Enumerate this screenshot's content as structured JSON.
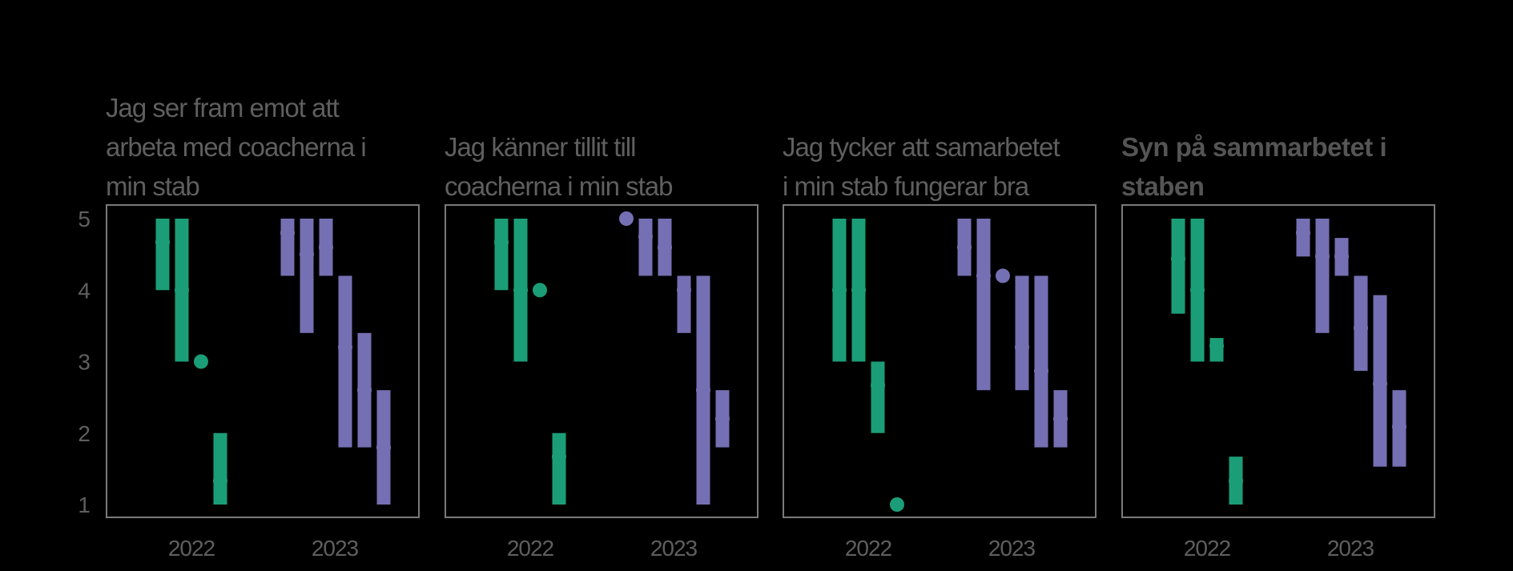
{
  "colors": {
    "2022": "#1b9e77",
    "2023": "#7570b3",
    "frame": "#7a7a7a",
    "text": "#5f5f5f",
    "background": "#000000"
  },
  "chart_data": [
    {
      "type": "interval",
      "title_lines": [
        "Jag ser fram emot att",
        "arbeta med coacherna i",
        "min stab"
      ],
      "title_bold": false,
      "ylim": [
        0.8,
        5.2
      ],
      "yticks": [
        1,
        2,
        3,
        4,
        5
      ],
      "x_groups": [
        "2022",
        "2023"
      ],
      "series": [
        {
          "group": "2022",
          "items": [
            {
              "mean": 4.67,
              "low": 4.0,
              "high": 5.0
            },
            {
              "mean": 4.0,
              "low": 3.0,
              "high": 5.0
            },
            {
              "mean": 3.0,
              "low": 3.0,
              "high": 3.0
            },
            {
              "mean": 1.33,
              "low": 1.0,
              "high": 2.0
            }
          ]
        },
        {
          "group": "2023",
          "items": [
            {
              "mean": 4.8,
              "low": 4.2,
              "high": 5.0
            },
            {
              "mean": 4.5,
              "low": 3.4,
              "high": 5.0
            },
            {
              "mean": 4.6,
              "low": 4.2,
              "high": 5.0
            },
            {
              "mean": 3.2,
              "low": 1.8,
              "high": 4.2
            },
            {
              "mean": 2.6,
              "low": 1.8,
              "high": 3.4
            },
            {
              "mean": 1.8,
              "low": 1.0,
              "high": 2.6
            }
          ]
        }
      ]
    },
    {
      "type": "interval",
      "title_lines": [
        "Jag känner tillit till",
        "coacherna i min stab"
      ],
      "title_bold": false,
      "ylim": [
        0.8,
        5.2
      ],
      "yticks": [
        1,
        2,
        3,
        4,
        5
      ],
      "x_groups": [
        "2022",
        "2023"
      ],
      "series": [
        {
          "group": "2022",
          "items": [
            {
              "mean": 4.67,
              "low": 4.0,
              "high": 5.0
            },
            {
              "mean": 4.0,
              "low": 3.0,
              "high": 5.0
            },
            {
              "mean": 4.0,
              "low": 4.0,
              "high": 4.0
            },
            {
              "mean": 1.67,
              "low": 1.0,
              "high": 2.0
            }
          ]
        },
        {
          "group": "2023",
          "items": [
            {
              "mean": 5.0,
              "low": 5.0,
              "high": 5.0
            },
            {
              "mean": 4.75,
              "low": 4.2,
              "high": 5.0
            },
            {
              "mean": 4.6,
              "low": 4.2,
              "high": 5.0
            },
            {
              "mean": 4.0,
              "low": 3.4,
              "high": 4.2
            },
            {
              "mean": 2.6,
              "low": 1.0,
              "high": 4.2
            },
            {
              "mean": 2.2,
              "low": 1.8,
              "high": 2.6
            }
          ]
        }
      ]
    },
    {
      "type": "interval",
      "title_lines": [
        "Jag tycker att samarbetet",
        "i min stab fungerar bra"
      ],
      "title_bold": false,
      "ylim": [
        0.8,
        5.2
      ],
      "yticks": [
        1,
        2,
        3,
        4,
        5
      ],
      "x_groups": [
        "2022",
        "2023"
      ],
      "series": [
        {
          "group": "2022",
          "items": [
            {
              "mean": 4.0,
              "low": 3.0,
              "high": 5.0
            },
            {
              "mean": 4.0,
              "low": 3.0,
              "high": 5.0
            },
            {
              "mean": 2.67,
              "low": 2.0,
              "high": 3.0
            },
            {
              "mean": 1.0,
              "low": 1.0,
              "high": 1.0
            }
          ]
        },
        {
          "group": "2023",
          "items": [
            {
              "mean": 4.6,
              "low": 4.2,
              "high": 5.0
            },
            {
              "mean": 4.2,
              "low": 2.6,
              "high": 5.0
            },
            {
              "mean": 4.2,
              "low": 4.2,
              "high": 4.2
            },
            {
              "mean": 3.2,
              "low": 2.6,
              "high": 4.2
            },
            {
              "mean": 2.87,
              "low": 1.8,
              "high": 4.2
            },
            {
              "mean": 2.2,
              "low": 1.8,
              "high": 2.6
            }
          ]
        }
      ]
    },
    {
      "type": "interval",
      "title_lines": [
        "Syn på sammarbetet i",
        "staben"
      ],
      "title_bold": true,
      "ylim": [
        0.8,
        5.2
      ],
      "yticks": [
        1,
        2,
        3,
        4,
        5
      ],
      "x_groups": [
        "2022",
        "2023"
      ],
      "series": [
        {
          "group": "2022",
          "items": [
            {
              "mean": 4.44,
              "low": 3.67,
              "high": 5.0
            },
            {
              "mean": 4.0,
              "low": 3.0,
              "high": 5.0
            },
            {
              "mean": 3.22,
              "low": 3.0,
              "high": 3.33
            },
            {
              "mean": 1.33,
              "low": 1.0,
              "high": 1.67
            }
          ]
        },
        {
          "group": "2023",
          "items": [
            {
              "mean": 4.8,
              "low": 4.47,
              "high": 5.0
            },
            {
              "mean": 4.47,
              "low": 3.4,
              "high": 5.0
            },
            {
              "mean": 4.47,
              "low": 4.2,
              "high": 4.73
            },
            {
              "mean": 3.47,
              "low": 2.87,
              "high": 4.2
            },
            {
              "mean": 2.69,
              "low": 1.53,
              "high": 3.93
            },
            {
              "mean": 2.09,
              "low": 1.53,
              "high": 2.6
            }
          ]
        }
      ]
    }
  ]
}
